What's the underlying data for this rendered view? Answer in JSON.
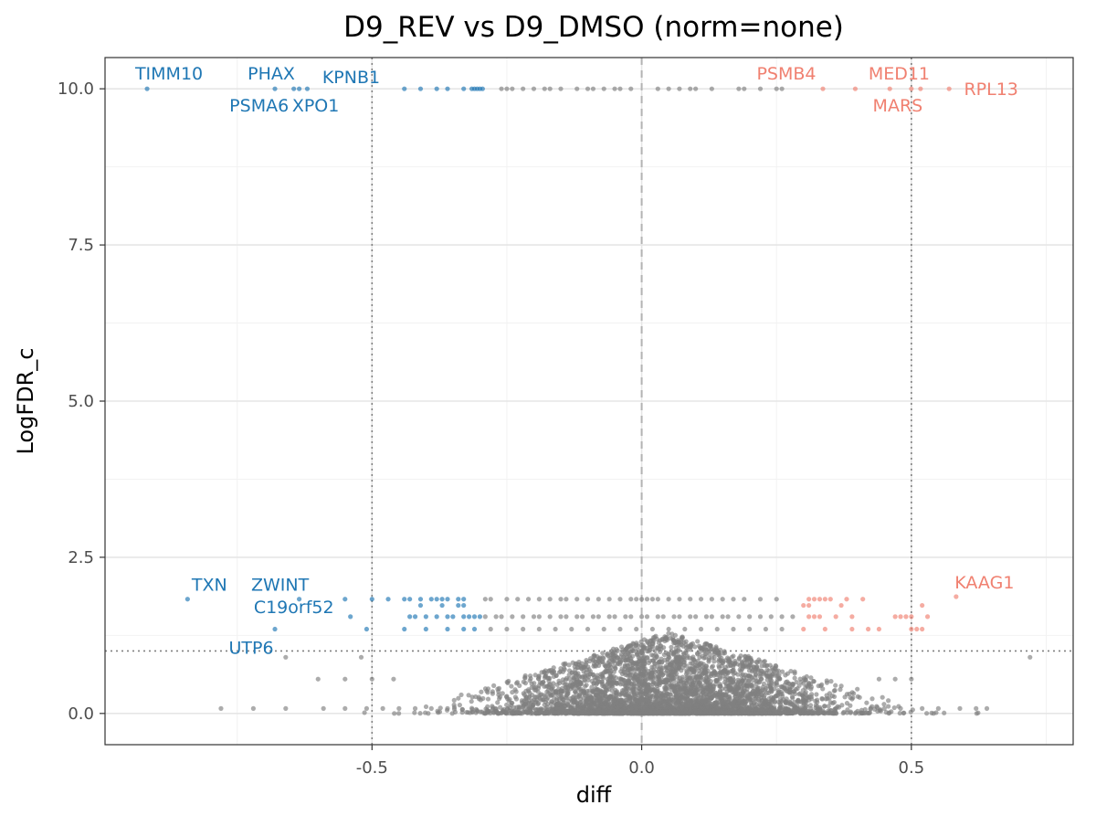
{
  "chart_data": {
    "type": "scatter",
    "title": "D9_REV vs D9_DMSO (norm=none)",
    "xlabel": "diff",
    "ylabel": "LogFDR_c",
    "xlim": [
      -0.995,
      0.8
    ],
    "ylim": [
      -0.5,
      10.5
    ],
    "x_ticks": [
      {
        "value": -0.5,
        "label": "-0.5"
      },
      {
        "value": 0.0,
        "label": "0.0"
      },
      {
        "value": 0.5,
        "label": "0.5"
      }
    ],
    "y_ticks": [
      {
        "value": 0.0,
        "label": "0.0"
      },
      {
        "value": 2.5,
        "label": "2.5"
      },
      {
        "value": 5.0,
        "label": "5.0"
      },
      {
        "value": 7.5,
        "label": "7.5"
      },
      {
        "value": 10.0,
        "label": "10.0"
      }
    ],
    "grid": true,
    "reference_lines": {
      "vertical_dashed": 0.0,
      "vertical_dotted": [
        -0.5,
        0.5
      ],
      "horizontal_dotted": 1.0
    },
    "colors": {
      "down": "#1f77b4",
      "up": "#f08070",
      "neutral": "#808080"
    },
    "labeled_points": [
      {
        "label": "TIMM10",
        "x": -0.917,
        "y": 10.0,
        "group": "down"
      },
      {
        "label": "PHAX",
        "x": -0.68,
        "y": 10.0,
        "group": "down"
      },
      {
        "label": "KPNB1",
        "x": -0.62,
        "y": 10.0,
        "group": "down"
      },
      {
        "label": "PSMA6",
        "x": -0.645,
        "y": 10.0,
        "group": "down"
      },
      {
        "label": "XPO1",
        "x": -0.635,
        "y": 10.0,
        "group": "down"
      },
      {
        "label": "PSMB4",
        "x": 0.336,
        "y": 10.0,
        "group": "up"
      },
      {
        "label": "MED11",
        "x": 0.396,
        "y": 10.0,
        "group": "up"
      },
      {
        "label": "RPL13",
        "x": 0.57,
        "y": 10.0,
        "group": "up"
      },
      {
        "label": "MARS",
        "x": 0.517,
        "y": 10.0,
        "group": "up"
      },
      {
        "label": "TXN",
        "x": -0.842,
        "y": 1.83,
        "group": "down"
      },
      {
        "label": "ZWINT",
        "x": -0.635,
        "y": 1.83,
        "group": "down"
      },
      {
        "label": "C19orf52",
        "x": -0.54,
        "y": 1.55,
        "group": "down"
      },
      {
        "label": "UTP6",
        "x": -0.68,
        "y": 1.35,
        "group": "down"
      },
      {
        "label": "KAAG1",
        "x": 0.583,
        "y": 1.87,
        "group": "up"
      }
    ],
    "point_groups": [
      {
        "group": "down",
        "y": 10.0,
        "x": [
          -0.44,
          -0.41,
          -0.38,
          -0.36,
          -0.33,
          -0.315,
          -0.31,
          -0.305,
          -0.3,
          -0.295
        ]
      },
      {
        "group": "up",
        "y": 10.0,
        "x": [
          0.46,
          0.5
        ]
      },
      {
        "group": "neutral",
        "y": 10.0,
        "x": [
          -0.26,
          -0.25,
          -0.24,
          -0.22,
          -0.2,
          -0.18,
          -0.17,
          -0.15,
          -0.12,
          -0.1,
          -0.09,
          -0.07,
          -0.05,
          -0.04,
          -0.02,
          0.03,
          0.05,
          0.07,
          0.09,
          0.1,
          0.13,
          0.18,
          0.19,
          0.22,
          0.25,
          0.26
        ]
      },
      {
        "group": "down",
        "y": 1.83,
        "x": [
          -0.55,
          -0.5,
          -0.47,
          -0.44,
          -0.43,
          -0.41,
          -0.39,
          -0.38,
          -0.37,
          -0.36,
          -0.34,
          -0.33
        ]
      },
      {
        "group": "down",
        "y": 1.73,
        "x": [
          -0.41,
          -0.37,
          -0.34,
          -0.33
        ]
      },
      {
        "group": "down",
        "y": 1.55,
        "x": [
          -0.43,
          -0.42,
          -0.4,
          -0.38,
          -0.36,
          -0.35,
          -0.33,
          -0.32,
          -0.31,
          -0.3
        ]
      },
      {
        "group": "down",
        "y": 1.35,
        "x": [
          -0.51,
          -0.44,
          -0.4,
          -0.36,
          -0.33,
          -0.31
        ]
      },
      {
        "group": "up",
        "y": 1.83,
        "x": [
          0.31,
          0.32,
          0.33,
          0.34,
          0.35,
          0.38,
          0.41
        ]
      },
      {
        "group": "up",
        "y": 1.73,
        "x": [
          0.3,
          0.31,
          0.37,
          0.52
        ]
      },
      {
        "group": "up",
        "y": 1.55,
        "x": [
          0.31,
          0.32,
          0.33,
          0.36,
          0.39,
          0.47,
          0.48,
          0.49,
          0.5,
          0.53
        ]
      },
      {
        "group": "up",
        "y": 1.35,
        "x": [
          0.3,
          0.34,
          0.39,
          0.42,
          0.44,
          0.5,
          0.51,
          0.52
        ]
      },
      {
        "group": "neutral",
        "y": 1.83,
        "x": [
          -0.29,
          -0.28,
          -0.25,
          -0.23,
          -0.21,
          -0.19,
          -0.17,
          -0.15,
          -0.14,
          -0.12,
          -0.1,
          -0.08,
          -0.06,
          -0.04,
          -0.02,
          -0.01,
          0.0,
          0.01,
          0.02,
          0.03,
          0.05,
          0.07,
          0.09,
          0.11,
          0.13,
          0.15,
          0.17,
          0.19,
          0.22,
          0.25
        ]
      },
      {
        "group": "neutral",
        "y": 1.55,
        "x": [
          -0.29,
          -0.27,
          -0.26,
          -0.24,
          -0.22,
          -0.2,
          -0.19,
          -0.17,
          -0.15,
          -0.14,
          -0.12,
          -0.11,
          -0.09,
          -0.08,
          -0.06,
          -0.05,
          -0.03,
          -0.02,
          0.0,
          0.01,
          0.03,
          0.04,
          0.06,
          0.07,
          0.09,
          0.1,
          0.12,
          0.13,
          0.15,
          0.16,
          0.18,
          0.2,
          0.22,
          0.24,
          0.26,
          0.28
        ]
      },
      {
        "group": "neutral",
        "y": 1.35,
        "x": [
          -0.28,
          -0.25,
          -0.22,
          -0.19,
          -0.16,
          -0.13,
          -0.1,
          -0.07,
          -0.04,
          -0.01,
          0.02,
          0.05,
          0.08,
          0.11,
          0.14,
          0.17,
          0.2,
          0.23,
          0.26
        ]
      },
      {
        "group": "neutral",
        "y": 0.08,
        "x": [
          -0.78,
          -0.72,
          -0.66,
          -0.59,
          -0.55,
          -0.51,
          -0.48,
          -0.45,
          -0.42,
          -0.39,
          -0.36,
          0.45,
          0.48,
          0.52,
          0.55,
          0.59,
          0.62,
          0.64
        ]
      },
      {
        "group": "neutral",
        "y": 0.55,
        "x": [
          -0.6,
          -0.55,
          -0.5,
          -0.46,
          0.44,
          0.47,
          0.5
        ]
      },
      {
        "group": "neutral",
        "y": 0.9,
        "x": [
          -0.52,
          -0.66,
          0.72
        ]
      }
    ],
    "point_cloud": {
      "group": "neutral",
      "count": 4200,
      "x_mean": 0.05,
      "x_sd": 0.15,
      "y_max": 1.3
    }
  }
}
